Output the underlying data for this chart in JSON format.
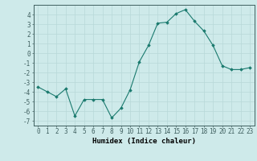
{
  "x": [
    0,
    1,
    2,
    3,
    4,
    5,
    6,
    7,
    8,
    9,
    10,
    11,
    12,
    13,
    14,
    15,
    16,
    17,
    18,
    19,
    20,
    21,
    22,
    23
  ],
  "y": [
    -3.5,
    -4.0,
    -4.5,
    -3.7,
    -6.5,
    -4.8,
    -4.8,
    -4.8,
    -6.7,
    -5.7,
    -3.8,
    -0.9,
    0.8,
    3.1,
    3.2,
    4.1,
    4.5,
    3.3,
    2.3,
    0.8,
    -1.3,
    -1.7,
    -1.7,
    -1.5
  ],
  "line_color": "#1a7a6e",
  "marker": "D",
  "marker_size": 1.8,
  "line_width": 0.8,
  "xlabel": "Humidex (Indice chaleur)",
  "xlabel_fontsize": 6.5,
  "xlim": [
    -0.5,
    23.5
  ],
  "ylim": [
    -7.5,
    5.0
  ],
  "yticks": [
    -7,
    -6,
    -5,
    -4,
    -3,
    -2,
    -1,
    0,
    1,
    2,
    3,
    4
  ],
  "xtick_labels": [
    "0",
    "1",
    "2",
    "3",
    "4",
    "5",
    "6",
    "7",
    "8",
    "9",
    "10",
    "11",
    "12",
    "13",
    "14",
    "15",
    "16",
    "17",
    "18",
    "19",
    "20",
    "21",
    "22",
    "23"
  ],
  "tick_fontsize": 5.5,
  "bg_color": "#ceeaea",
  "grid_color": "#b8d8d8",
  "spine_color": "#406060"
}
